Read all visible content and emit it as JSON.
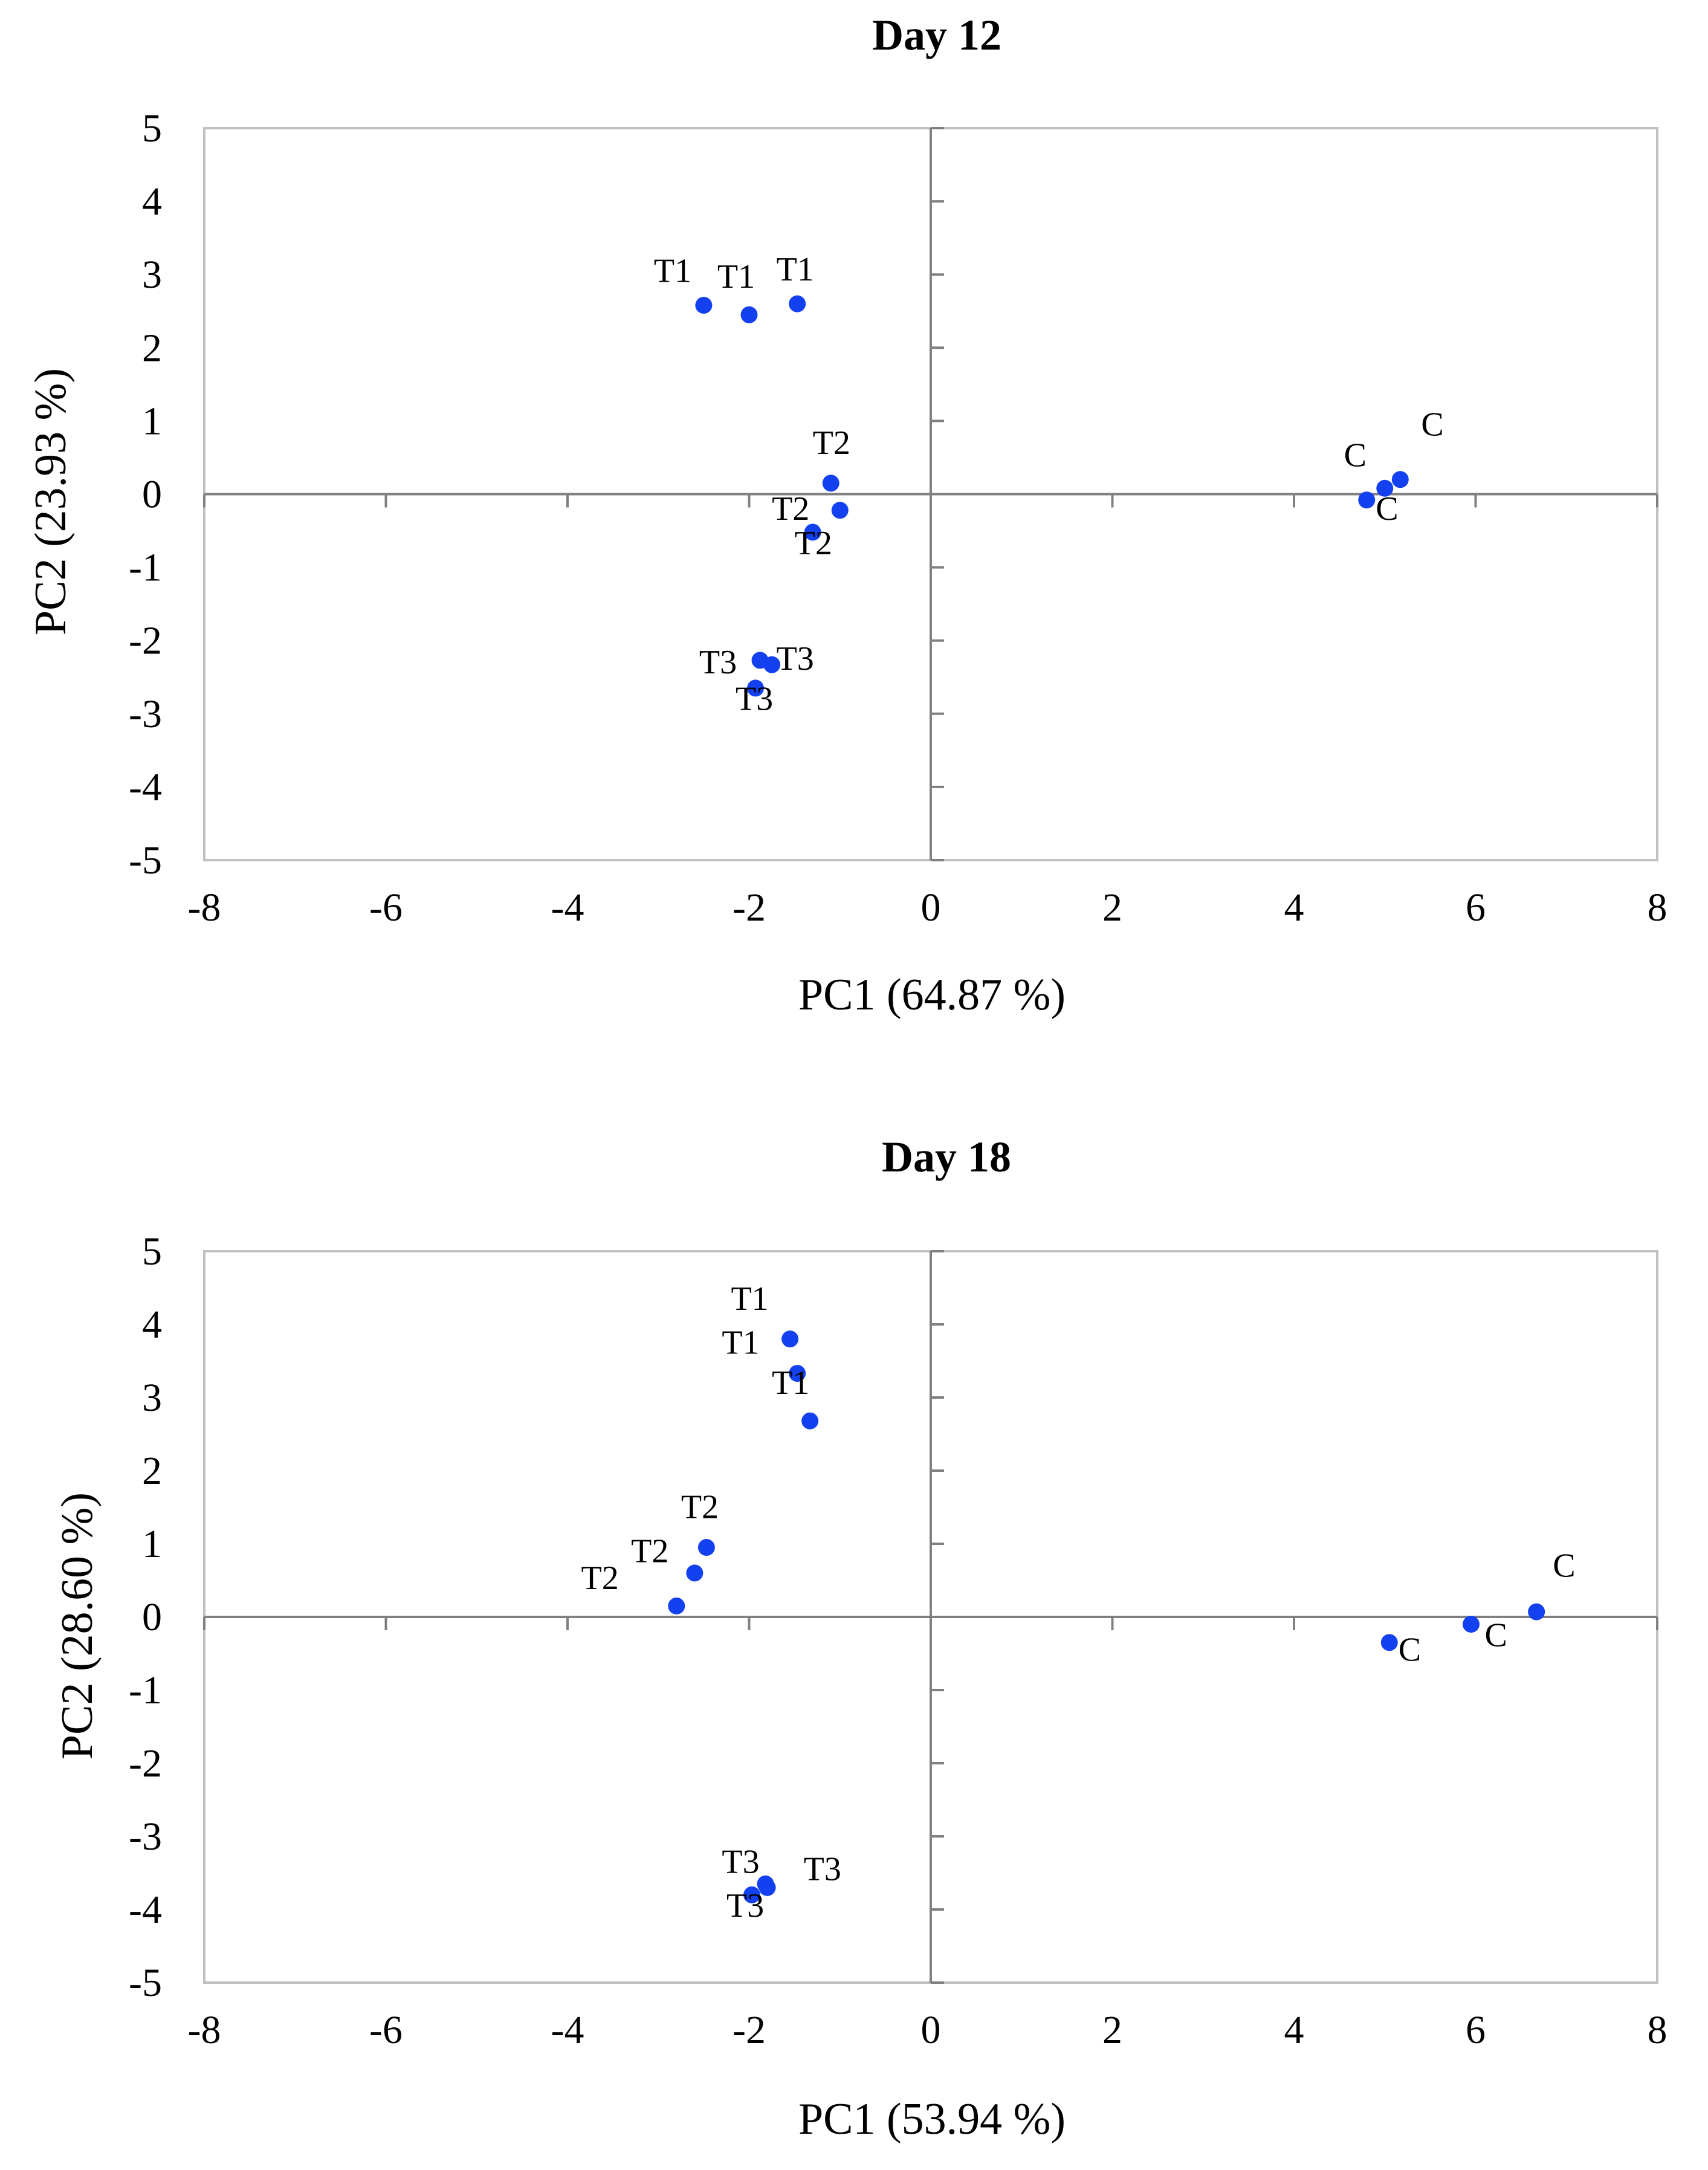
{
  "colors": {
    "point": "#1441f0",
    "axis": "#808080",
    "frame": "#c0c0c0",
    "text": "#000000"
  },
  "chart_data": [
    {
      "type": "scatter",
      "title": "Day 12",
      "xlabel": "PC1 (64.87 %)",
      "ylabel": "PC2 (23.93 %)",
      "xlim": [
        -8,
        8
      ],
      "ylim": [
        -5,
        5
      ],
      "xticks": [
        -8,
        -6,
        -4,
        -2,
        0,
        2,
        4,
        6,
        8
      ],
      "yticks": [
        5,
        4,
        3,
        2,
        1,
        0,
        -1,
        -2,
        -3,
        -4,
        -5
      ],
      "grid": false,
      "points": [
        {
          "label": "T1",
          "x": -2.5,
          "y": 2.58
        },
        {
          "label": "T1",
          "x": -2.0,
          "y": 2.45
        },
        {
          "label": "T1",
          "x": -1.47,
          "y": 2.6
        },
        {
          "label": "T2",
          "x": -1.1,
          "y": 0.15
        },
        {
          "label": "T2",
          "x": -1.0,
          "y": -0.22
        },
        {
          "label": "T2",
          "x": -1.3,
          "y": -0.52
        },
        {
          "label": "T3",
          "x": -1.88,
          "y": -2.27
        },
        {
          "label": "T3",
          "x": -1.75,
          "y": -2.33
        },
        {
          "label": "T3",
          "x": -1.93,
          "y": -2.65
        },
        {
          "label": "C",
          "x": 4.8,
          "y": -0.08
        },
        {
          "label": "C",
          "x": 5.0,
          "y": 0.08
        },
        {
          "label": "C",
          "x": 5.17,
          "y": 0.2
        }
      ],
      "label_anchors": [
        {
          "x": -3.05,
          "y": 2.9
        },
        {
          "x": -2.35,
          "y": 2.82
        },
        {
          "x": -1.7,
          "y": 2.92
        },
        {
          "x": -1.3,
          "y": 0.55
        },
        {
          "x": -1.75,
          "y": -0.35
        },
        {
          "x": -1.5,
          "y": -0.82
        },
        {
          "x": -2.55,
          "y": -2.45
        },
        {
          "x": -1.7,
          "y": -2.4
        },
        {
          "x": -2.15,
          "y": -2.95
        },
        {
          "x": 4.55,
          "y": 0.38
        },
        {
          "x": 4.9,
          "y": -0.35
        },
        {
          "x": 5.4,
          "y": 0.8
        }
      ]
    },
    {
      "type": "scatter",
      "title": "Day 18",
      "xlabel": "PC1 (53.94 %)",
      "ylabel": "PC2 (28.60 %)",
      "xlim": [
        -8,
        8
      ],
      "ylim": [
        -5,
        5
      ],
      "xticks": [
        -8,
        -6,
        -4,
        -2,
        0,
        2,
        4,
        6,
        8
      ],
      "yticks": [
        5,
        4,
        3,
        2,
        1,
        0,
        -1,
        -2,
        -3,
        -4,
        -5
      ],
      "grid": false,
      "points": [
        {
          "label": "T1",
          "x": -1.55,
          "y": 3.8
        },
        {
          "label": "T1",
          "x": -1.47,
          "y": 3.33
        },
        {
          "label": "T1",
          "x": -1.33,
          "y": 2.68
        },
        {
          "label": "T2",
          "x": -2.47,
          "y": 0.95
        },
        {
          "label": "T2",
          "x": -2.6,
          "y": 0.6
        },
        {
          "label": "T2",
          "x": -2.8,
          "y": 0.15
        },
        {
          "label": "T3",
          "x": -1.82,
          "y": -3.65
        },
        {
          "label": "T3",
          "x": -1.8,
          "y": -3.7
        },
        {
          "label": "T3",
          "x": -1.97,
          "y": -3.8
        },
        {
          "label": "C",
          "x": 5.05,
          "y": -0.35
        },
        {
          "label": "C",
          "x": 5.95,
          "y": -0.1
        },
        {
          "label": "C",
          "x": 6.67,
          "y": 0.07
        }
      ],
      "label_anchors": [
        {
          "x": -2.2,
          "y": 4.2
        },
        {
          "x": -2.3,
          "y": 3.6
        },
        {
          "x": -1.75,
          "y": 3.05
        },
        {
          "x": -2.75,
          "y": 1.35
        },
        {
          "x": -3.3,
          "y": 0.75
        },
        {
          "x": -3.85,
          "y": 0.38
        },
        {
          "x": -2.3,
          "y": -3.5
        },
        {
          "x": -1.4,
          "y": -3.6
        },
        {
          "x": -2.25,
          "y": -4.1
        },
        {
          "x": 5.15,
          "y": -0.6
        },
        {
          "x": 6.1,
          "y": -0.4
        },
        {
          "x": 6.85,
          "y": 0.55
        }
      ]
    }
  ]
}
